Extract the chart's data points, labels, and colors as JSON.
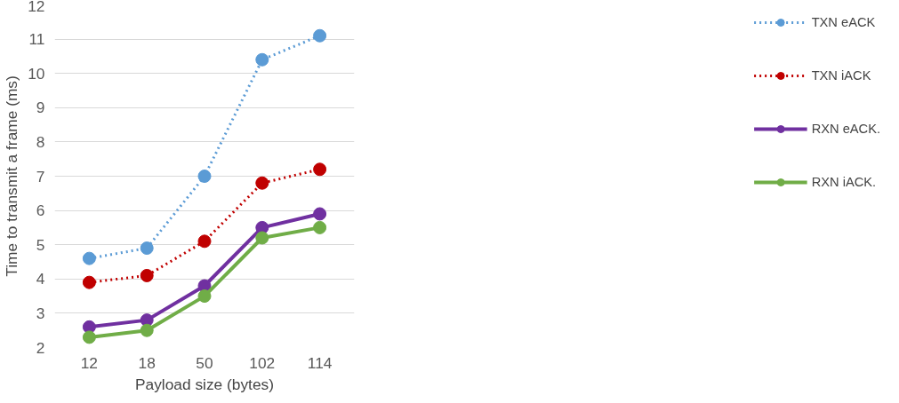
{
  "chart_data": {
    "type": "line",
    "xlabel": "Payload size (bytes)",
    "ylabel": "Time to transmit a frame (ms)",
    "categories": [
      "12",
      "18",
      "50",
      "102",
      "114"
    ],
    "ylim": [
      2,
      12
    ],
    "yticks": [
      2,
      3,
      4,
      5,
      6,
      7,
      8,
      9,
      10,
      11,
      12
    ],
    "grid": "y",
    "legend": "right",
    "marker": "circle",
    "series": [
      {
        "name": "TXN eACK",
        "color": "#5b9bd5",
        "line_style": "dotted",
        "values": [
          4.6,
          4.9,
          7.0,
          10.4,
          11.1
        ]
      },
      {
        "name": "TXN iACK",
        "color": "#c00000",
        "line_style": "dotted",
        "values": [
          3.9,
          4.1,
          5.1,
          6.8,
          7.2
        ]
      },
      {
        "name": "RXN eACK.",
        "color": "#7030a0",
        "line_style": "solid",
        "values": [
          2.6,
          2.8,
          3.8,
          5.5,
          5.9
        ]
      },
      {
        "name": "RXN iACK.",
        "color": "#70ad47",
        "line_style": "solid",
        "values": [
          2.3,
          2.5,
          3.5,
          5.2,
          5.5
        ]
      }
    ]
  }
}
